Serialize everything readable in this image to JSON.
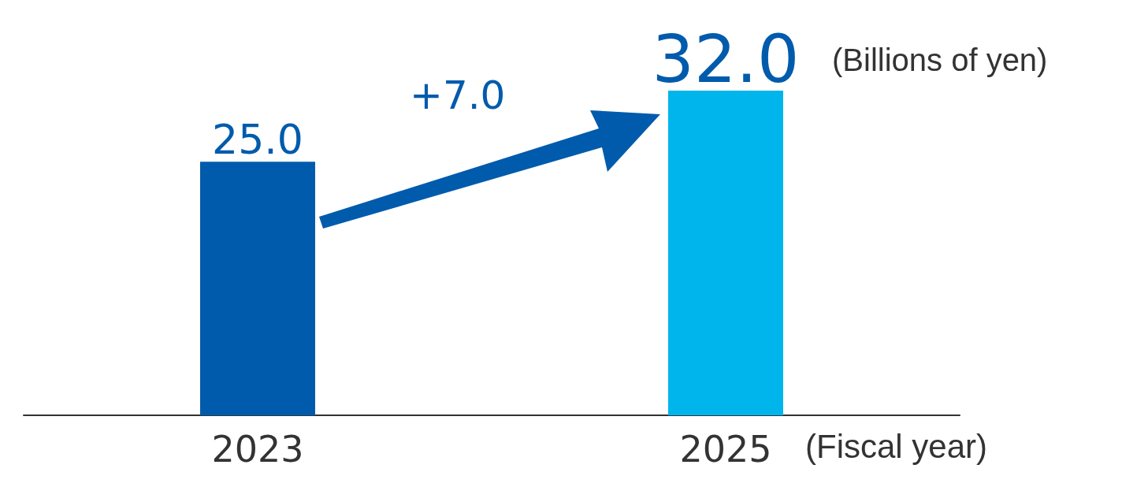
{
  "chart_data": {
    "type": "bar",
    "categories": [
      "2023",
      "2025"
    ],
    "values": [
      25.0,
      32.0
    ],
    "colors": [
      "#005bac",
      "#00b5ec"
    ],
    "value_labels": [
      "25.0",
      "32.0"
    ],
    "ylabel": "(Billions of yen)",
    "xlabel": "(Fiscal year)",
    "annotations": [
      "+7.0"
    ]
  }
}
